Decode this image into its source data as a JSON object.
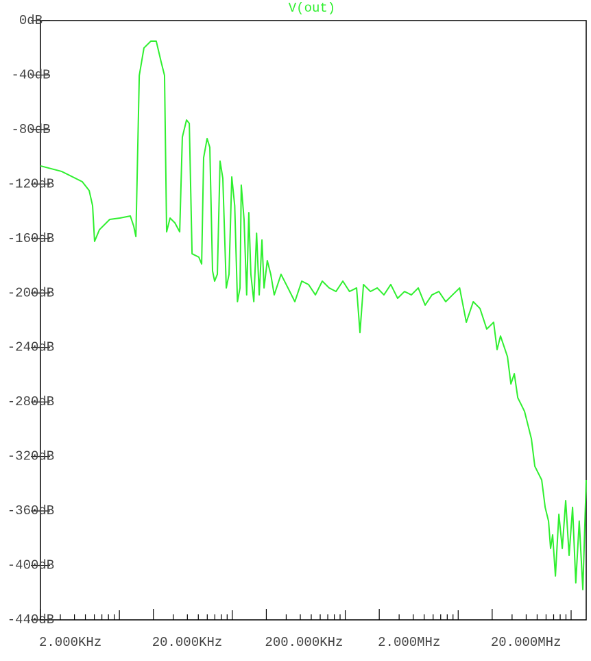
{
  "chart_data": {
    "type": "line",
    "log_x": true,
    "xlim": [
      2000,
      136000000
    ],
    "ylim": [
      -440,
      0
    ],
    "xticks": [
      {
        "value": 2000,
        "label": "2.000KHz"
      },
      {
        "value": 20000,
        "label": "20.000KHz"
      },
      {
        "value": 200000,
        "label": "200.000KHz"
      },
      {
        "value": 2000000,
        "label": "2.000MHz"
      },
      {
        "value": 20000000,
        "label": "20.000MHz"
      }
    ],
    "xminorticks": [
      3000,
      4000,
      5000,
      6000,
      7000,
      8000,
      9000,
      10000,
      30000,
      40000,
      50000,
      60000,
      70000,
      80000,
      90000,
      100000,
      300000,
      400000,
      500000,
      600000,
      700000,
      800000,
      900000,
      1000000,
      3000000,
      4000000,
      5000000,
      6000000,
      7000000,
      8000000,
      9000000,
      10000000,
      30000000,
      40000000,
      50000000,
      60000000,
      70000000,
      80000000,
      90000000,
      100000000
    ],
    "yticks": [
      {
        "value": 0,
        "label": "0dB"
      },
      {
        "value": -40,
        "label": "-40dB"
      },
      {
        "value": -80,
        "label": "-80dB"
      },
      {
        "value": -120,
        "label": "-120dB"
      },
      {
        "value": -160,
        "label": "-160dB"
      },
      {
        "value": -200,
        "label": "-200dB"
      },
      {
        "value": -240,
        "label": "-240dB"
      },
      {
        "value": -280,
        "label": "-280dB"
      },
      {
        "value": -320,
        "label": "-320dB"
      },
      {
        "value": -360,
        "label": "-360dB"
      },
      {
        "value": -400,
        "label": "-400dB"
      },
      {
        "value": -440,
        "label": "-440dB"
      }
    ],
    "x": [
      2000,
      3090,
      4690,
      5400,
      5790,
      6030,
      6660,
      8210,
      10100,
      12500,
      13400,
      14000,
      15000,
      16500,
      19000,
      21200,
      23400,
      25100,
      26200,
      28100,
      31000,
      34200,
      36100,
      39300,
      41600,
      44000,
      50500,
      53500,
      55700,
      59800,
      63200,
      66800,
      69700,
      73700,
      77900,
      82400,
      88400,
      93500,
      98900,
      105000,
      111000,
      117000,
      120000,
      127000,
      134000,
      140000,
      146000,
      155000,
      164000,
      173000,
      183000,
      191000,
      204000,
      219000,
      235000,
      270000,
      311000,
      358000,
      412000,
      473000,
      544000,
      626000,
      720000,
      828000,
      952000,
      1090000,
      1260000,
      1350000,
      1450000,
      1670000,
      1920000,
      2200000,
      2530000,
      2910000,
      3350000,
      3850000,
      4430000,
      5100000,
      5860000,
      6740000,
      7750000,
      8910000,
      10300000,
      11800000,
      13600000,
      15600000,
      17900000,
      20600000,
      22100000,
      23700000,
      27300000,
      29300000,
      31400000,
      33700000,
      36100000,
      38700000,
      41500000,
      44500000,
      47700000,
      51200000,
      54900000,
      58900000,
      63100000,
      65800000,
      68600000,
      72600000,
      77900000,
      83500000,
      89500000,
      96000000,
      103000000,
      110000000,
      118000000,
      127000000,
      136000000
    ],
    "series": [
      {
        "name": "V(out)",
        "color": "#2fef2f",
        "values": [
          -106.7,
          -110.8,
          -118.3,
          -124.8,
          -135.9,
          -162.1,
          -153.5,
          -146.0,
          -145.0,
          -143.5,
          -151.0,
          -158.6,
          -40.3,
          -20.1,
          -15.1,
          -15.1,
          -30.2,
          -40.3,
          -155.1,
          -145.0,
          -148.5,
          -155.1,
          -85.6,
          -73.0,
          -75.5,
          -171.2,
          -173.7,
          -178.7,
          -100.7,
          -86.6,
          -93.1,
          -183.8,
          -191.3,
          -186.3,
          -103.2,
          -115.8,
          -196.3,
          -186.3,
          -114.8,
          -135.9,
          -206.4,
          -196.3,
          -120.8,
          -146.0,
          -201.4,
          -141.0,
          -186.3,
          -206.4,
          -156.1,
          -201.4,
          -161.1,
          -196.3,
          -176.2,
          -186.3,
          -201.4,
          -186.3,
          -196.3,
          -206.4,
          -191.3,
          -193.8,
          -201.4,
          -191.3,
          -196.3,
          -198.9,
          -191.3,
          -198.9,
          -196.3,
          -229.1,
          -193.8,
          -198.9,
          -196.3,
          -201.4,
          -193.8,
          -203.9,
          -198.9,
          -201.4,
          -196.3,
          -208.9,
          -201.4,
          -198.9,
          -206.4,
          -201.4,
          -196.3,
          -221.5,
          -206.4,
          -211.4,
          -226.5,
          -221.5,
          -241.6,
          -231.6,
          -246.7,
          -266.8,
          -259.3,
          -276.9,
          -281.9,
          -287.0,
          -297.0,
          -307.1,
          -327.2,
          -332.3,
          -337.3,
          -357.4,
          -367.5,
          -387.6,
          -377.6,
          -407.8,
          -362.5,
          -387.6,
          -352.4,
          -392.7,
          -357.4,
          -412.8,
          -367.5,
          -417.8,
          -337.3
        ]
      }
    ]
  }
}
